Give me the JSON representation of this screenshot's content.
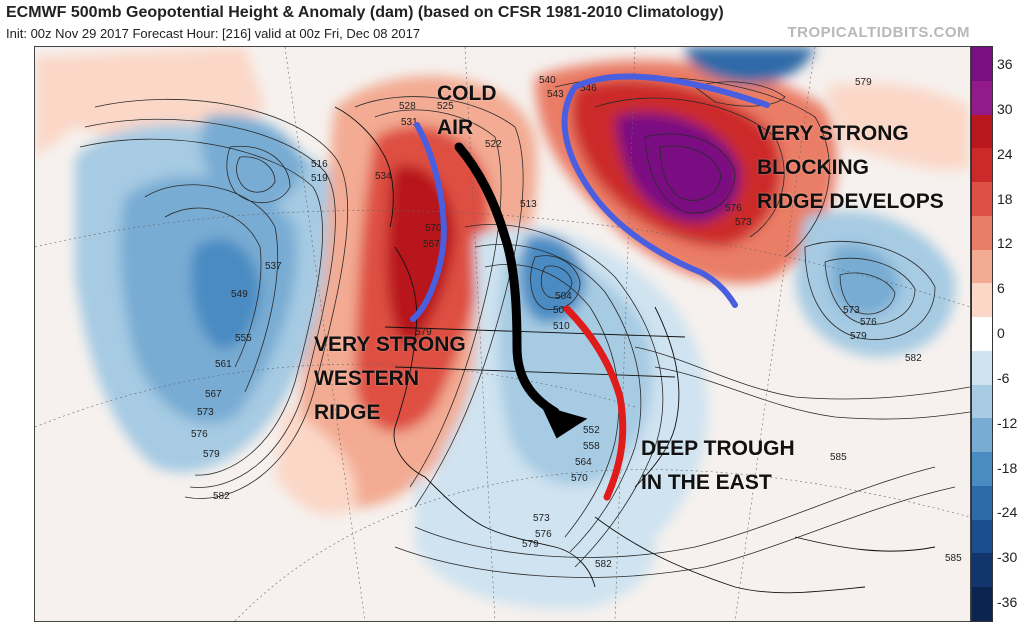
{
  "header": {
    "title": "ECMWF 500mb Geopotential Height & Anomaly (dam) (based on CFSR 1981-2010 Climatology)",
    "subtitle": "Init: 00z Nov 29 2017   Forecast Hour: [216]   valid at 00z Fri, Dec 08 2017",
    "source": "TROPICALTIDBITS.COM"
  },
  "annotations": {
    "cold_air_1": "COLD",
    "cold_air_2": "AIR",
    "blocking_1": "VERY STRONG",
    "blocking_2": "BLOCKING",
    "blocking_3": "RIDGE DEVELOPS",
    "western_1": "VERY STRONG",
    "western_2": "WESTERN",
    "western_3": "RIDGE",
    "trough_1": "DEEP TROUGH",
    "trough_2": "IN THE EAST"
  },
  "colorbar": {
    "labels": [
      "36",
      "30",
      "24",
      "18",
      "12",
      "6",
      "0",
      "-6",
      "-12",
      "-18",
      "-24",
      "-30",
      "-36"
    ],
    "colors": [
      "#7a0f82",
      "#931a8a",
      "#b8171e",
      "#cc2a2a",
      "#de5043",
      "#ea7d66",
      "#f3ab93",
      "#fbd7c7",
      "#ffffff",
      "#cfe3f0",
      "#a6cbe3",
      "#78acd3",
      "#4a8bc2",
      "#2d6aa8",
      "#1b4e8c",
      "#12356c",
      "#0c2450"
    ],
    "accent_purple": "#7a0f82"
  },
  "contour_labels": [
    "528",
    "525",
    "531",
    "534",
    "537",
    "540",
    "543",
    "546",
    "549",
    "552",
    "555",
    "558",
    "561",
    "564",
    "567",
    "570",
    "573",
    "576",
    "579",
    "582",
    "585",
    "516",
    "519",
    "522",
    "507",
    "510",
    "513",
    "504"
  ],
  "arrows": {
    "cold_air_arrow_color": "#000000",
    "ridge_axis_color": "#4a5ee0",
    "trough_axis_color": "#e01b1b"
  }
}
